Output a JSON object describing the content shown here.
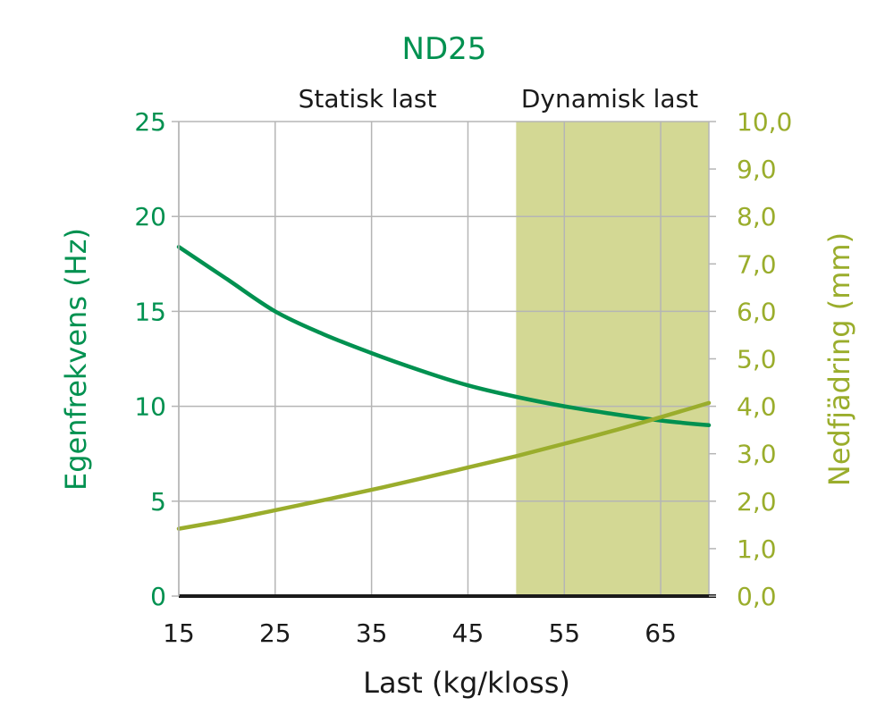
{
  "colors": {
    "primary": "#009150",
    "secondary": "#9aad2c",
    "shade": "#d3d894",
    "grid": "#b5b5b5",
    "axis": "#1a1a1a",
    "text": "#1a1a1a"
  },
  "chart_data": {
    "type": "line",
    "title": "ND25",
    "xlabel": "Last (kg/kloss)",
    "ylabel": "Egenfrekvens (Hz)",
    "y2label": "Nedfjädring (mm)",
    "xlim": [
      15,
      70
    ],
    "ylim": [
      0,
      25
    ],
    "y2lim": [
      0,
      10
    ],
    "x_ticks": [
      "15",
      "25",
      "35",
      "45",
      "55",
      "65"
    ],
    "y_ticks": [
      "0",
      "5",
      "10",
      "15",
      "20",
      "25"
    ],
    "y2_ticks": [
      "0,0",
      "1,0",
      "2,0",
      "3,0",
      "4,0",
      "5,0",
      "6,0",
      "7,0",
      "8,0",
      "9,0",
      "10,0"
    ],
    "regions": [
      {
        "label": "Statisk last",
        "x_start": 15,
        "x_end": 50
      },
      {
        "label": "Dynamisk last",
        "x_start": 50,
        "x_end": 70
      }
    ],
    "grid": true,
    "series": [
      {
        "axis": "left",
        "x": [
          15,
          20,
          25,
          30,
          35,
          40,
          45,
          50,
          55,
          60,
          65,
          70
        ],
        "values": [
          18.4,
          16.7,
          15.0,
          13.8,
          12.8,
          11.9,
          11.1,
          10.5,
          10.0,
          9.6,
          9.25,
          9.0
        ]
      },
      {
        "axis": "right",
        "x": [
          15,
          20,
          25,
          30,
          35,
          40,
          45,
          50,
          55,
          60,
          65,
          70
        ],
        "values": [
          1.42,
          1.6,
          1.81,
          2.02,
          2.24,
          2.47,
          2.71,
          2.95,
          3.21,
          3.48,
          3.77,
          4.07
        ]
      }
    ]
  }
}
